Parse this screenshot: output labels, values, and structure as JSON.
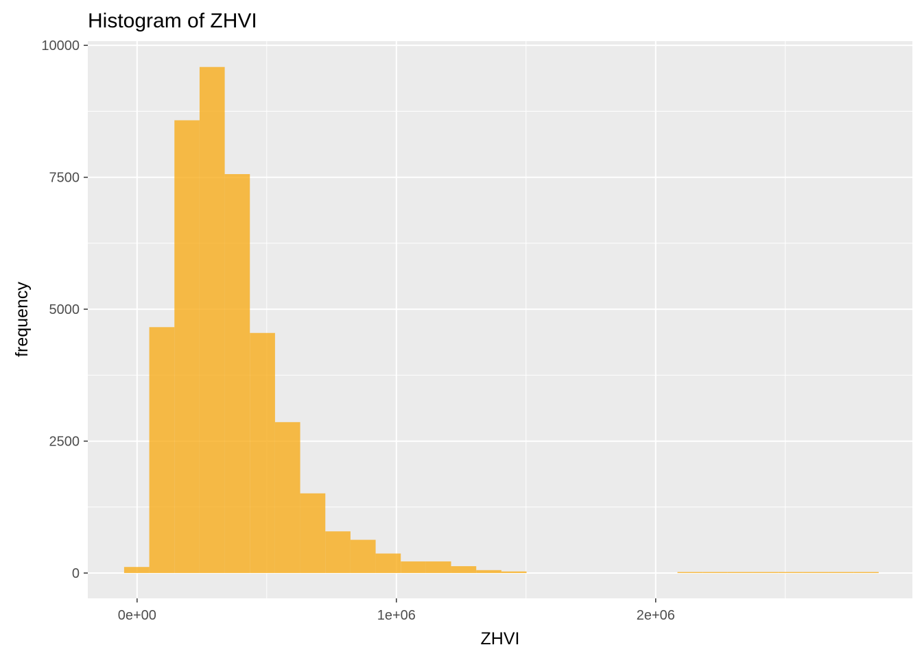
{
  "chart_data": {
    "type": "bar",
    "title": "Histogram of ZHVI",
    "xlabel": "ZHVI",
    "ylabel": "frequency",
    "colors": {
      "fill": "#f8ac1c",
      "panel_background": "#ebebeb",
      "grid": "#ffffff",
      "tick_text": "#4d4d4d",
      "tick_mark": "#333333"
    },
    "fill_opacity": 0.8,
    "xlim": [
      -190000,
      2990000
    ],
    "ylim": [
      -480,
      10080
    ],
    "x_ticks": [
      {
        "value": 0,
        "label": "0e+00"
      },
      {
        "value": 1000000,
        "label": "1e+06"
      },
      {
        "value": 2000000,
        "label": "2e+06"
      }
    ],
    "x_minor_ticks": [
      500000,
      1500000,
      2500000
    ],
    "y_ticks": [
      {
        "value": 0,
        "label": "0"
      },
      {
        "value": 2500,
        "label": "2500"
      },
      {
        "value": 5000,
        "label": "5000"
      },
      {
        "value": 7500,
        "label": "7500"
      },
      {
        "value": 10000,
        "label": "10000"
      }
    ],
    "y_minor_ticks": [
      1250,
      3750,
      6250,
      8750
    ],
    "bins": [
      {
        "x0": -50000,
        "x1": 47000,
        "count": 115
      },
      {
        "x0": 47000,
        "x1": 144000,
        "count": 4660
      },
      {
        "x0": 144000,
        "x1": 241000,
        "count": 8580
      },
      {
        "x0": 241000,
        "x1": 338000,
        "count": 9590
      },
      {
        "x0": 338000,
        "x1": 435000,
        "count": 7560
      },
      {
        "x0": 435000,
        "x1": 532000,
        "count": 4550
      },
      {
        "x0": 532000,
        "x1": 629000,
        "count": 2860
      },
      {
        "x0": 629000,
        "x1": 726000,
        "count": 1510
      },
      {
        "x0": 726000,
        "x1": 823000,
        "count": 790
      },
      {
        "x0": 823000,
        "x1": 920000,
        "count": 630
      },
      {
        "x0": 920000,
        "x1": 1017000,
        "count": 370
      },
      {
        "x0": 1017000,
        "x1": 1114000,
        "count": 220
      },
      {
        "x0": 1114000,
        "x1": 1211000,
        "count": 220
      },
      {
        "x0": 1211000,
        "x1": 1308000,
        "count": 130
      },
      {
        "x0": 1308000,
        "x1": 1405000,
        "count": 55
      },
      {
        "x0": 1405000,
        "x1": 1502000,
        "count": 30
      },
      {
        "x0": 2084000,
        "x1": 2181000,
        "count": 5
      },
      {
        "x0": 2181000,
        "x1": 2278000,
        "count": 5
      },
      {
        "x0": 2278000,
        "x1": 2375000,
        "count": 5
      },
      {
        "x0": 2375000,
        "x1": 2472000,
        "count": 5
      },
      {
        "x0": 2472000,
        "x1": 2569000,
        "count": 5
      },
      {
        "x0": 2569000,
        "x1": 2666000,
        "count": 5
      },
      {
        "x0": 2666000,
        "x1": 2763000,
        "count": 5
      },
      {
        "x0": 2763000,
        "x1": 2860000,
        "count": 5
      }
    ]
  }
}
